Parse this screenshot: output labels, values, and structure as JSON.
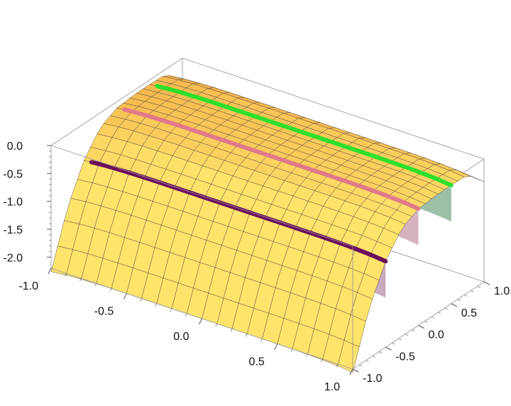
{
  "chart_data": {
    "type": "surface3d",
    "title": "",
    "xlabel": "",
    "ylabel": "",
    "zlabel": "",
    "xlim": [
      -1.0,
      1.0
    ],
    "ylim": [
      -1.0,
      1.0
    ],
    "zlim": [
      -2.2,
      0.0
    ],
    "x_ticks": [
      "-1.0",
      "-0.5",
      "0.0",
      "0.5",
      "1.0"
    ],
    "x_tick_values": [
      -1.0,
      -0.5,
      0.0,
      0.5,
      1.0
    ],
    "y_ticks": [
      "-1.0",
      "-0.5",
      "0.0",
      "0.5",
      "1.0"
    ],
    "y_tick_values": [
      -1.0,
      -0.5,
      0.0,
      0.5,
      1.0
    ],
    "z_ticks": [
      "0.0",
      "-0.5",
      "-1.0",
      "-1.5",
      "-2.0"
    ],
    "z_tick_values": [
      0.0,
      -0.5,
      -1.0,
      -1.5,
      -2.0
    ],
    "surface": {
      "mesh_divisions": 20,
      "z_samples_along_y": {
        "y": [
          -1.0,
          -0.75,
          -0.5,
          -0.25,
          0.0,
          0.25,
          0.5,
          0.75,
          1.0
        ],
        "z": [
          -2.2,
          -1.25,
          -0.6,
          -0.2,
          -0.05,
          -0.02,
          -0.02,
          -0.03,
          -0.35
        ]
      },
      "x_edge_falloff": 0.06
    },
    "curves": [
      {
        "y": -0.5,
        "color": "#6b0d5b",
        "shadow_color": "#b58fa6"
      },
      {
        "y": 0.0,
        "color": "#e07a8a",
        "shadow_color": "#c79aa5"
      },
      {
        "y": 0.5,
        "color": "#2de02d",
        "shadow_color": "#7aaa8a"
      }
    ],
    "colors": {
      "surface_light": "#ffe36b",
      "surface_mid": "#f7b94f",
      "surface_dark": "#d98a35",
      "mesh": "#3a3a3a",
      "box": "#9a9a9a"
    }
  }
}
